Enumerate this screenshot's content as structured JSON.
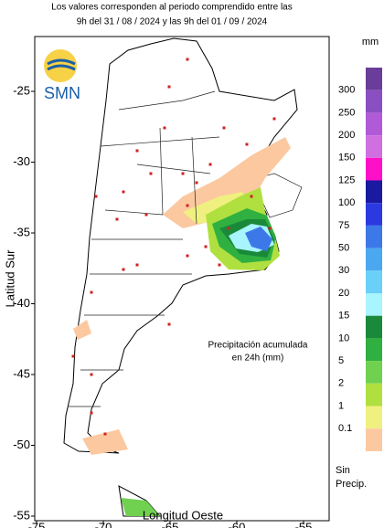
{
  "header": {
    "lines": [
      "Los valores corresponden al periodo comprendido entre las",
      "9h del 31 / 08 / 2024  y las 9h del 01 / 09 / 2024"
    ]
  },
  "logo": "SMN",
  "axes": {
    "x_label": "Longitud Oeste",
    "y_label": "Latitud Sur",
    "x_ticks": [
      -75,
      -70,
      -65,
      -60,
      -55
    ],
    "y_ticks": [
      -25,
      -30,
      -35,
      -40,
      -45,
      -50,
      -55
    ]
  },
  "annotation": [
    "Precipitación acumulada",
    "en 24h (mm)"
  ],
  "legend": {
    "unit": "mm",
    "levels": [
      "300",
      "250",
      "200",
      "150",
      "125",
      "100",
      "75",
      "50",
      "30",
      "20",
      "15",
      "10",
      "5",
      "2",
      "1",
      "0.1"
    ],
    "colors": [
      "#6a3d9a",
      "#8a4fc0",
      "#b05ad8",
      "#d070e0",
      "#ff10c8",
      "#1a1aa0",
      "#2a3ae0",
      "#3c78e8",
      "#4aa8f0",
      "#6ad0f8",
      "#a8f4ff",
      "#1a8a3a",
      "#30b040",
      "#70d050",
      "#b0e040",
      "#f0f080",
      "#fbc8a0"
    ],
    "no_precip": [
      "Sin",
      "Precip."
    ]
  }
}
